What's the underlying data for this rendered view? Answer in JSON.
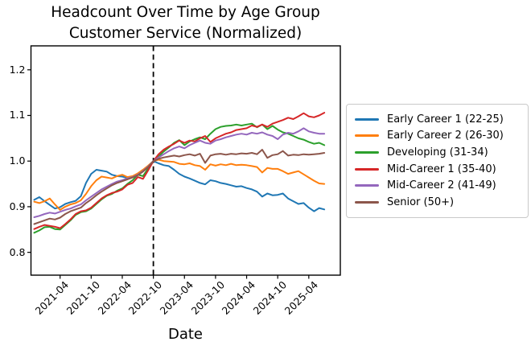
{
  "figure": {
    "title_line1": "Headcount Over Time by Age Group",
    "title_line2": "Customer Service (Normalized)",
    "xlabel": "Date"
  },
  "chart_data": {
    "type": "line",
    "title": "Headcount Over Time by Age Group — Customer Service (Normalized)",
    "xlabel": "Date",
    "ylabel": "",
    "grid": false,
    "legend_position": "outside-right",
    "x_unit": "month",
    "x_start": "2020-11",
    "x_end": "2025-07",
    "n_points": 57,
    "ylim": [
      0.75,
      1.2525
    ],
    "yticks": [
      0.8,
      0.9,
      1.0,
      1.1,
      1.2
    ],
    "ytick_labels": [
      "0.8",
      "0.9",
      "1.0",
      "1.1",
      "1.2"
    ],
    "xtick_indices": [
      5,
      11,
      17,
      23,
      29,
      35,
      41,
      47,
      53
    ],
    "xtick_labels": [
      "2021-04",
      "2021-10",
      "2022-04",
      "2022-10",
      "2023-04",
      "2023-10",
      "2024-04",
      "2024-10",
      "2025-04"
    ],
    "reference_line": {
      "type": "vertical-dashed",
      "x_index": 23,
      "x_label": "2022-10",
      "color": "#000000"
    },
    "normalization": "all series equal 1.0 at 2022-10",
    "series": [
      {
        "id": "early-career-1",
        "name": "Early Career 1 (22-25)",
        "color": "#1f77b4",
        "values": [
          0.915,
          0.921,
          0.912,
          0.904,
          0.896,
          0.899,
          0.906,
          0.91,
          0.913,
          0.923,
          0.952,
          0.972,
          0.981,
          0.979,
          0.977,
          0.97,
          0.967,
          0.966,
          0.963,
          0.966,
          0.972,
          0.98,
          0.989,
          1.0,
          0.995,
          0.991,
          0.989,
          0.981,
          0.972,
          0.966,
          0.962,
          0.957,
          0.952,
          0.949,
          0.958,
          0.956,
          0.952,
          0.95,
          0.947,
          0.944,
          0.945,
          0.941,
          0.938,
          0.933,
          0.922,
          0.929,
          0.925,
          0.926,
          0.929,
          0.918,
          0.912,
          0.906,
          0.908,
          0.898,
          0.89,
          0.897,
          0.894
        ]
      },
      {
        "id": "early-career-2",
        "name": "Early Career 2 (26-30)",
        "color": "#ff7f0e",
        "values": [
          0.911,
          0.908,
          0.912,
          0.918,
          0.905,
          0.893,
          0.9,
          0.905,
          0.908,
          0.914,
          0.928,
          0.945,
          0.958,
          0.966,
          0.964,
          0.962,
          0.967,
          0.97,
          0.965,
          0.967,
          0.973,
          0.981,
          0.99,
          1.0,
          1.003,
          1.0,
          0.999,
          0.998,
          0.994,
          0.993,
          0.995,
          0.991,
          0.989,
          0.981,
          0.993,
          0.99,
          0.993,
          0.991,
          0.994,
          0.991,
          0.992,
          0.991,
          0.989,
          0.987,
          0.975,
          0.985,
          0.983,
          0.983,
          0.978,
          0.972,
          0.975,
          0.978,
          0.971,
          0.964,
          0.957,
          0.951,
          0.95
        ]
      },
      {
        "id": "developing",
        "name": "Developing (31-34)",
        "color": "#2ca02c",
        "values": [
          0.843,
          0.848,
          0.855,
          0.856,
          0.851,
          0.85,
          0.86,
          0.87,
          0.882,
          0.888,
          0.89,
          0.896,
          0.906,
          0.916,
          0.924,
          0.928,
          0.935,
          0.94,
          0.95,
          0.958,
          0.97,
          0.967,
          0.984,
          1.0,
          1.01,
          1.021,
          1.03,
          1.04,
          1.046,
          1.035,
          1.043,
          1.048,
          1.052,
          1.048,
          1.06,
          1.07,
          1.075,
          1.077,
          1.078,
          1.08,
          1.078,
          1.08,
          1.082,
          1.074,
          1.08,
          1.07,
          1.077,
          1.069,
          1.063,
          1.06,
          1.055,
          1.05,
          1.047,
          1.042,
          1.038,
          1.04,
          1.035
        ]
      },
      {
        "id": "mid-career-1",
        "name": "Mid-Career 1 (35-40)",
        "color": "#d62728",
        "values": [
          0.851,
          0.856,
          0.86,
          0.858,
          0.856,
          0.853,
          0.862,
          0.872,
          0.884,
          0.89,
          0.892,
          0.898,
          0.908,
          0.918,
          0.925,
          0.93,
          0.933,
          0.938,
          0.948,
          0.952,
          0.965,
          0.961,
          0.98,
          1.0,
          1.015,
          1.025,
          1.032,
          1.038,
          1.045,
          1.04,
          1.045,
          1.043,
          1.05,
          1.055,
          1.042,
          1.05,
          1.055,
          1.06,
          1.063,
          1.068,
          1.07,
          1.072,
          1.078,
          1.075,
          1.08,
          1.075,
          1.082,
          1.086,
          1.09,
          1.095,
          1.092,
          1.098,
          1.105,
          1.098,
          1.096,
          1.1,
          1.106
        ]
      },
      {
        "id": "mid-career-2",
        "name": "Mid-Career 2 (41-49)",
        "color": "#9467bd",
        "values": [
          0.877,
          0.88,
          0.884,
          0.887,
          0.885,
          0.889,
          0.893,
          0.896,
          0.901,
          0.905,
          0.914,
          0.922,
          0.93,
          0.938,
          0.944,
          0.95,
          0.955,
          0.958,
          0.962,
          0.965,
          0.97,
          0.978,
          0.988,
          1.0,
          1.008,
          1.015,
          1.022,
          1.028,
          1.032,
          1.028,
          1.035,
          1.04,
          1.045,
          1.04,
          1.038,
          1.045,
          1.048,
          1.052,
          1.055,
          1.058,
          1.06,
          1.058,
          1.062,
          1.06,
          1.063,
          1.058,
          1.055,
          1.048,
          1.058,
          1.062,
          1.06,
          1.065,
          1.072,
          1.065,
          1.062,
          1.06,
          1.06
        ]
      },
      {
        "id": "senior",
        "name": "Senior (50+)",
        "color": "#8c564b",
        "values": [
          0.862,
          0.866,
          0.87,
          0.874,
          0.872,
          0.876,
          0.884,
          0.89,
          0.894,
          0.898,
          0.908,
          0.916,
          0.925,
          0.933,
          0.94,
          0.947,
          0.952,
          0.956,
          0.96,
          0.964,
          0.969,
          0.977,
          0.987,
          1.0,
          1.005,
          1.008,
          1.01,
          1.012,
          1.01,
          1.013,
          1.015,
          1.012,
          1.016,
          0.996,
          1.012,
          1.015,
          1.016,
          1.014,
          1.016,
          1.015,
          1.017,
          1.016,
          1.018,
          1.015,
          1.025,
          1.007,
          1.013,
          1.015,
          1.022,
          1.012,
          1.014,
          1.013,
          1.015,
          1.014,
          1.015,
          1.016,
          1.018
        ]
      }
    ]
  }
}
